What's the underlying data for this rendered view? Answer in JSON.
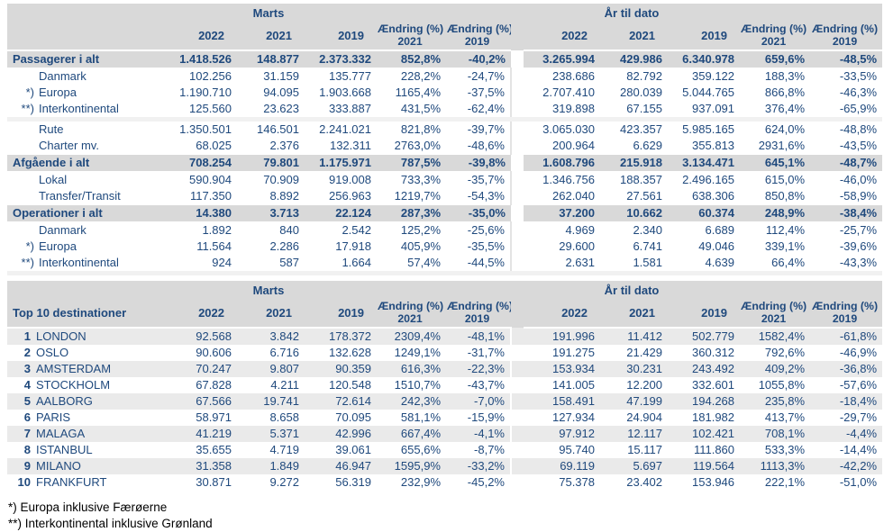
{
  "colors": {
    "text_navy": "#1F497D",
    "header_grey": "#D9D9D9",
    "stripe_grey": "#EAEAEA",
    "spacer_grey": "#F1F1F1",
    "footnote_black": "#000000"
  },
  "columns": {
    "month_group": "Marts",
    "ytd_group": "År til dato",
    "years": [
      "2022",
      "2021",
      "2019"
    ],
    "change_label": "Ændring (%)",
    "change_years": [
      "2021",
      "2019"
    ]
  },
  "traffic_table": {
    "rows": [
      {
        "label": "Passagerer i alt",
        "prefix": "",
        "style": "total",
        "gap_before": false,
        "values": [
          "1.418.526",
          "148.877",
          "2.373.332",
          "852,8%",
          "-40,2%",
          "3.265.994",
          "429.986",
          "6.340.978",
          "659,6%",
          "-48,5%"
        ]
      },
      {
        "label": "Danmark",
        "prefix": "",
        "style": "sub",
        "gap_before": false,
        "values": [
          "102.256",
          "31.159",
          "135.777",
          "228,2%",
          "-24,7%",
          "238.686",
          "82.792",
          "359.122",
          "188,3%",
          "-33,5%"
        ]
      },
      {
        "label": "Europa",
        "prefix": "*)",
        "style": "sub",
        "gap_before": false,
        "values": [
          "1.190.710",
          "94.095",
          "1.903.668",
          "1165,4%",
          "-37,5%",
          "2.707.410",
          "280.039",
          "5.044.765",
          "866,8%",
          "-46,3%"
        ]
      },
      {
        "label": "Interkontinental",
        "prefix": "**)",
        "style": "sub",
        "gap_before": false,
        "values": [
          "125.560",
          "23.623",
          "333.887",
          "431,5%",
          "-62,4%",
          "319.898",
          "67.155",
          "937.091",
          "376,4%",
          "-65,9%"
        ]
      },
      {
        "label": "Rute",
        "prefix": "",
        "style": "sub",
        "gap_before": true,
        "values": [
          "1.350.501",
          "146.501",
          "2.241.021",
          "821,8%",
          "-39,7%",
          "3.065.030",
          "423.357",
          "5.985.165",
          "624,0%",
          "-48,8%"
        ]
      },
      {
        "label": "Charter mv.",
        "prefix": "",
        "style": "sub",
        "gap_before": false,
        "values": [
          "68.025",
          "2.376",
          "132.311",
          "2763,0%",
          "-48,6%",
          "200.964",
          "6.629",
          "355.813",
          "2931,6%",
          "-43,5%"
        ]
      },
      {
        "label": "Afgående i alt",
        "prefix": "",
        "style": "total",
        "gap_before": false,
        "values": [
          "708.254",
          "79.801",
          "1.175.971",
          "787,5%",
          "-39,8%",
          "1.608.796",
          "215.918",
          "3.134.471",
          "645,1%",
          "-48,7%"
        ]
      },
      {
        "label": "Lokal",
        "prefix": "",
        "style": "sub",
        "gap_before": false,
        "values": [
          "590.904",
          "70.909",
          "919.008",
          "733,3%",
          "-35,7%",
          "1.346.756",
          "188.357",
          "2.496.165",
          "615,0%",
          "-46,0%"
        ]
      },
      {
        "label": "Transfer/Transit",
        "prefix": "",
        "style": "sub",
        "gap_before": false,
        "values": [
          "117.350",
          "8.892",
          "256.963",
          "1219,7%",
          "-54,3%",
          "262.040",
          "27.561",
          "638.306",
          "850,8%",
          "-58,9%"
        ]
      },
      {
        "label": "Operationer i alt",
        "prefix": "",
        "style": "total",
        "gap_before": false,
        "values": [
          "14.380",
          "3.713",
          "22.124",
          "287,3%",
          "-35,0%",
          "37.200",
          "10.662",
          "60.374",
          "248,9%",
          "-38,4%"
        ]
      },
      {
        "label": "Danmark",
        "prefix": "",
        "style": "sub",
        "gap_before": false,
        "values": [
          "1.892",
          "840",
          "2.542",
          "125,2%",
          "-25,6%",
          "4.969",
          "2.340",
          "6.689",
          "112,4%",
          "-25,7%"
        ]
      },
      {
        "label": "Europa",
        "prefix": "*)",
        "style": "sub",
        "gap_before": false,
        "values": [
          "11.564",
          "2.286",
          "17.918",
          "405,9%",
          "-35,5%",
          "29.600",
          "6.741",
          "49.046",
          "339,1%",
          "-39,6%"
        ]
      },
      {
        "label": "Interkontinental",
        "prefix": "**)",
        "style": "sub",
        "gap_before": false,
        "values": [
          "924",
          "587",
          "1.664",
          "57,4%",
          "-44,5%",
          "2.631",
          "1.581",
          "4.639",
          "66,4%",
          "-43,3%"
        ]
      }
    ]
  },
  "top10_table": {
    "title": "Top 10 destinationer",
    "rows": [
      {
        "rank": "1",
        "label": "LONDON",
        "values": [
          "92.568",
          "3.842",
          "178.372",
          "2309,4%",
          "-48,1%",
          "191.996",
          "11.412",
          "502.779",
          "1582,4%",
          "-61,8%"
        ]
      },
      {
        "rank": "2",
        "label": "OSLO",
        "values": [
          "90.606",
          "6.716",
          "132.628",
          "1249,1%",
          "-31,7%",
          "191.275",
          "21.429",
          "360.312",
          "792,6%",
          "-46,9%"
        ]
      },
      {
        "rank": "3",
        "label": "AMSTERDAM",
        "values": [
          "70.247",
          "9.807",
          "90.359",
          "616,3%",
          "-22,3%",
          "153.934",
          "30.231",
          "243.492",
          "409,2%",
          "-36,8%"
        ]
      },
      {
        "rank": "4",
        "label": "STOCKHOLM",
        "values": [
          "67.828",
          "4.211",
          "120.548",
          "1510,7%",
          "-43,7%",
          "141.005",
          "12.200",
          "332.601",
          "1055,8%",
          "-57,6%"
        ]
      },
      {
        "rank": "5",
        "label": "AALBORG",
        "values": [
          "67.566",
          "19.741",
          "72.614",
          "242,3%",
          "-7,0%",
          "158.491",
          "47.199",
          "194.268",
          "235,8%",
          "-18,4%"
        ]
      },
      {
        "rank": "6",
        "label": "PARIS",
        "values": [
          "58.971",
          "8.658",
          "70.095",
          "581,1%",
          "-15,9%",
          "127.934",
          "24.904",
          "181.982",
          "413,7%",
          "-29,7%"
        ]
      },
      {
        "rank": "7",
        "label": "MALAGA",
        "values": [
          "41.219",
          "5.371",
          "42.996",
          "667,4%",
          "-4,1%",
          "97.912",
          "12.117",
          "102.421",
          "708,1%",
          "-4,4%"
        ]
      },
      {
        "rank": "8",
        "label": "ISTANBUL",
        "values": [
          "35.655",
          "4.719",
          "39.061",
          "655,6%",
          "-8,7%",
          "95.740",
          "15.117",
          "111.860",
          "533,3%",
          "-14,4%"
        ]
      },
      {
        "rank": "9",
        "label": "MILANO",
        "values": [
          "31.358",
          "1.849",
          "46.947",
          "1595,9%",
          "-33,2%",
          "69.119",
          "5.697",
          "119.564",
          "1113,3%",
          "-42,2%"
        ]
      },
      {
        "rank": "10",
        "label": "FRANKFURT",
        "values": [
          "30.871",
          "9.272",
          "56.319",
          "232,9%",
          "-45,2%",
          "75.378",
          "23.402",
          "153.946",
          "222,1%",
          "-51,0%"
        ]
      }
    ]
  },
  "footnotes": [
    "*) Europa inklusive Færøerne",
    "**) Interkontinental inklusive Grønland"
  ]
}
